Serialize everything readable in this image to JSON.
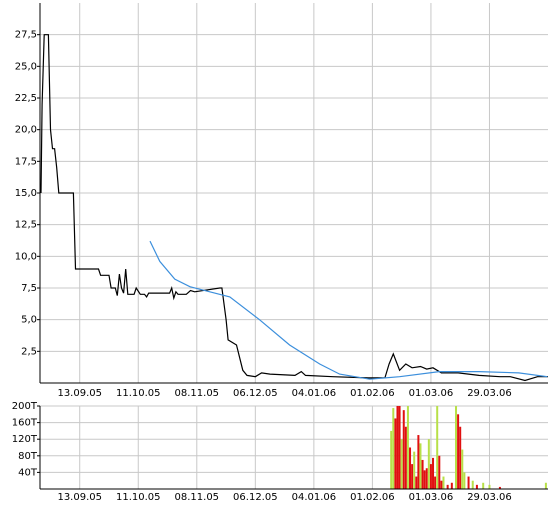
{
  "chart_data": [
    {
      "type": "line",
      "xlim": [
        0,
        243
      ],
      "xticks": [
        {
          "value": 19,
          "label": "13.09.05"
        },
        {
          "value": 47,
          "label": "11.10.05"
        },
        {
          "value": 75,
          "label": "08.11.05"
        },
        {
          "value": 103,
          "label": "06.12.05"
        },
        {
          "value": 131,
          "label": "04.01.06"
        },
        {
          "value": 159,
          "label": "01.02.06"
        },
        {
          "value": 187,
          "label": "01.03.06"
        },
        {
          "value": 215,
          "label": "29.03.06"
        }
      ],
      "ylim": [
        0,
        30
      ],
      "yticks": [
        {
          "value": 2.5,
          "label": "2,5"
        },
        {
          "value": 5,
          "label": "5,0"
        },
        {
          "value": 7.5,
          "label": "7,5"
        },
        {
          "value": 10,
          "label": "10,0"
        },
        {
          "value": 12.5,
          "label": "12,5"
        },
        {
          "value": 15,
          "label": "15,0"
        },
        {
          "value": 17.5,
          "label": "17,5"
        },
        {
          "value": 20,
          "label": "20,0"
        },
        {
          "value": 22.5,
          "label": "22,5"
        },
        {
          "value": 25,
          "label": "25,0"
        },
        {
          "value": 27.5,
          "label": "27,5"
        }
      ],
      "grid": true,
      "series": [
        {
          "color": "#000000",
          "x": [
            0.5,
            1,
            2,
            4,
            5,
            6,
            7,
            8,
            9,
            16,
            17,
            28,
            29,
            33,
            34,
            36,
            37,
            38,
            39,
            40,
            41,
            42,
            45,
            46,
            48,
            50,
            51,
            52,
            62,
            63,
            64,
            65,
            66,
            70,
            72,
            74,
            86,
            87,
            89,
            90,
            94,
            97,
            99,
            103,
            106,
            110,
            122,
            125,
            127,
            140,
            157,
            165,
            167,
            169,
            172,
            175,
            178,
            182,
            185,
            188,
            192,
            200,
            210,
            220,
            225,
            232,
            238,
            243
          ],
          "values": [
            15,
            22,
            27.5,
            27.5,
            20,
            18.5,
            18.5,
            17,
            15,
            15,
            9,
            9,
            8.5,
            8.5,
            7.5,
            7.5,
            6.9,
            8.6,
            7.5,
            7.1,
            9,
            7,
            7,
            7.5,
            7,
            7,
            6.8,
            7.1,
            7.1,
            7.5,
            6.7,
            7.2,
            7,
            7,
            7.3,
            7.2,
            7.5,
            7.5,
            5,
            3.4,
            3,
            1,
            0.6,
            0.5,
            0.8,
            0.7,
            0.6,
            0.9,
            0.6,
            0.5,
            0.4,
            0.4,
            1.5,
            2.3,
            1,
            1.5,
            1.2,
            1.3,
            1.1,
            1.2,
            0.8,
            0.8,
            0.6,
            0.5,
            0.5,
            0.2,
            0.5,
            0.5
          ]
        },
        {
          "color": "#3c8fdc",
          "x": [
            52.6,
            57.3,
            64.5,
            71.7,
            81.2,
            90.8,
            105,
            119.4,
            133.8,
            143.3,
            157.7,
            172,
            191,
            210,
            229,
            242.7
          ],
          "values": [
            11.2,
            9.6,
            8.2,
            7.6,
            7.2,
            6.8,
            5,
            3,
            1.5,
            0.7,
            0.3,
            0.5,
            0.9,
            0.9,
            0.8,
            0.5
          ]
        }
      ]
    },
    {
      "type": "bar",
      "xlim": [
        0,
        243
      ],
      "xticks": [
        {
          "value": 19,
          "label": "13.09.05"
        },
        {
          "value": 47,
          "label": "11.10.05"
        },
        {
          "value": 75,
          "label": "08.11.05"
        },
        {
          "value": 103,
          "label": "06.12.05"
        },
        {
          "value": 131,
          "label": "04.01.06"
        },
        {
          "value": 159,
          "label": "01.02.06"
        },
        {
          "value": 187,
          "label": "01.03.06"
        },
        {
          "value": 215,
          "label": "29.03.06"
        }
      ],
      "ylim": [
        0,
        200
      ],
      "yticks": [
        {
          "value": 40,
          "label": "40T"
        },
        {
          "value": 80,
          "label": "80T"
        },
        {
          "value": 120,
          "label": "120T"
        },
        {
          "value": 160,
          "label": "160T"
        },
        {
          "value": 200,
          "label": "200T"
        }
      ],
      "grid": true,
      "x": [
        168,
        169,
        170,
        171,
        172,
        173,
        174,
        175,
        176,
        177,
        178,
        179,
        180,
        181,
        182,
        183,
        184,
        185,
        186,
        187,
        188,
        189,
        190,
        191,
        192,
        193,
        195,
        197,
        199,
        200,
        201,
        202,
        203,
        205,
        207,
        209,
        212,
        215,
        220,
        242
      ],
      "values": [
        140,
        195,
        170,
        200,
        200,
        120,
        190,
        150,
        200,
        100,
        60,
        90,
        30,
        130,
        110,
        70,
        45,
        50,
        120,
        60,
        75,
        30,
        200,
        80,
        20,
        30,
        10,
        15,
        200,
        180,
        150,
        95,
        40,
        30,
        20,
        10,
        15,
        10,
        5,
        15
      ],
      "colors": [
        "#b8e048",
        "#b8e048",
        "#e01010",
        "#e01010",
        "#e01010",
        "#b8e048",
        "#e01010",
        "#e01010",
        "#b8e048",
        "#e01010",
        "#e01010",
        "#b8e048",
        "#e01010",
        "#e01010",
        "#b8e048",
        "#e01010",
        "#e01010",
        "#e01010",
        "#b8e048",
        "#e01010",
        "#e01010",
        "#e01010",
        "#b8e048",
        "#e01010",
        "#e01010",
        "#b8e048",
        "#e01010",
        "#e01010",
        "#b8e048",
        "#e01010",
        "#e01010",
        "#b8e048",
        "#b8e048",
        "#e01010",
        "#b8e048",
        "#e01010",
        "#b8e048",
        "#b8e048",
        "#e01010",
        "#b8e048"
      ]
    }
  ]
}
